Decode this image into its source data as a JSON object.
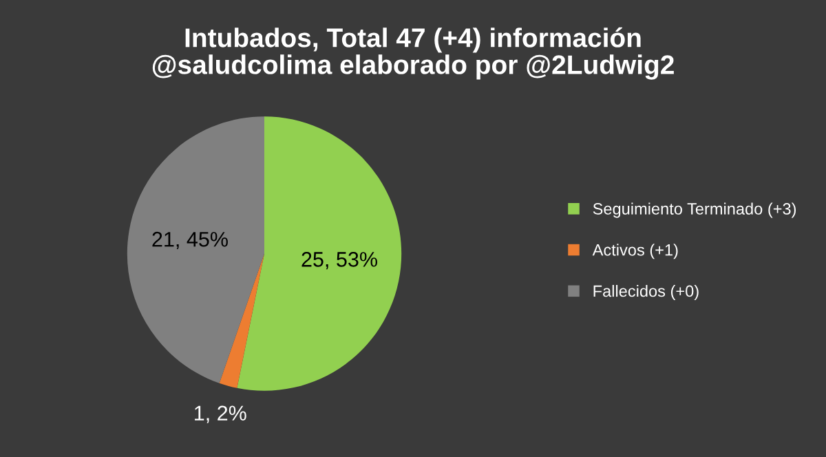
{
  "chart_data": {
    "type": "pie",
    "title": "Intubados, Total 47 (+4) información\n@saludcolima elaborado por @2Ludwig2",
    "categories": [
      "Seguimiento Terminado (+3)",
      "Activos (+1)",
      "Fallecidos (+0)"
    ],
    "values": [
      25,
      1,
      21
    ],
    "colors": [
      "#92d050",
      "#ed7d31",
      "#808080"
    ],
    "value_labels": [
      "25, 53%",
      "1, 2%",
      "21, 45%"
    ],
    "legend": "right"
  }
}
